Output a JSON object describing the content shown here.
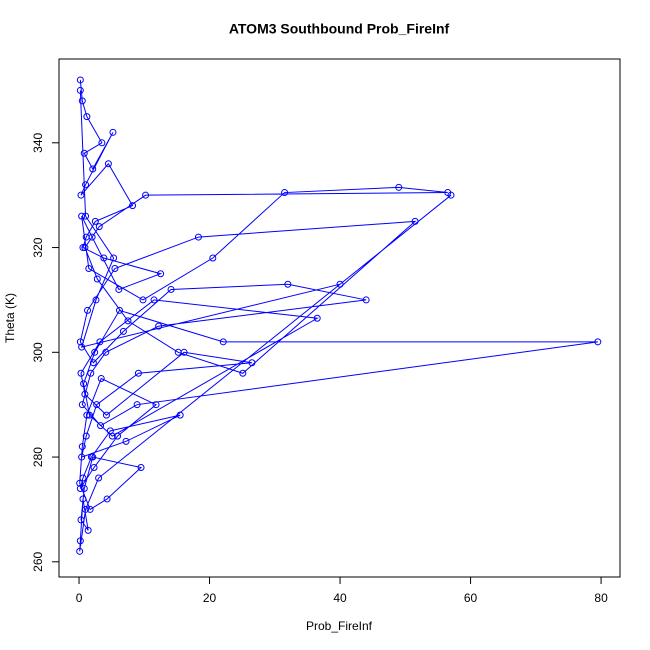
{
  "chart_data": {
    "type": "line",
    "title": "ATOM3 Southbound Prob_FireInf",
    "xlabel": "Prob_FireInf",
    "ylabel": "Theta (K)",
    "color": "#0000ff",
    "markers": true,
    "x": [
      0.2,
      0.5,
      1.2,
      3.5,
      0.8,
      2.1,
      5.2,
      1.0,
      0.3,
      4.5,
      8.2,
      2.5,
      1.1,
      0.6,
      3.8,
      12.5,
      6.1,
      2.0,
      0.4,
      1.5,
      9.8,
      20.5,
      31.5,
      49.0,
      56.5,
      10.2,
      3.1,
      0.9,
      2.8,
      7.5,
      15.2,
      25.1,
      51.5,
      18.3,
      5.5,
      1.3,
      0.2,
      2.2,
      6.8,
      14.1,
      32.0,
      44.0,
      12.2,
      4.1,
      1.8,
      0.5,
      3.3,
      8.9,
      79.5,
      22.1,
      6.2,
      2.4,
      0.7,
      1.6,
      5.1,
      36.5,
      11.5,
      3.2,
      0.3,
      0.9,
      4.2,
      16.1,
      26.5,
      9.1,
      2.7,
      1.1,
      0.4,
      7.2,
      15.5,
      4.8,
      1.9,
      0.6,
      0.2,
      2.3,
      5.9,
      11.8,
      3.4,
      1.2,
      0.5,
      0.1,
      1.7,
      4.3,
      9.5,
      2.1,
      0.8,
      0.3,
      1.4,
      0.6,
      0.2,
      0.1,
      1.0,
      3.0,
      57.0,
      40.0,
      0.4,
      2.6,
      5.3,
      1.0,
      0.2
    ],
    "values": [
      352,
      348,
      345,
      340,
      338,
      335,
      342,
      332,
      330,
      336,
      328,
      325,
      322,
      320,
      318,
      315,
      312,
      322,
      326,
      316,
      310,
      318,
      330.5,
      331.5,
      330.5,
      330,
      324,
      320,
      314,
      306,
      300,
      296,
      325,
      322,
      316,
      308,
      302,
      298,
      304,
      312,
      313,
      310,
      305,
      300,
      296,
      290,
      286,
      290,
      302,
      302,
      308,
      300,
      294,
      288,
      284,
      306.5,
      310,
      302,
      296,
      292,
      288,
      300,
      298,
      296,
      290,
      284,
      280,
      283,
      288,
      285,
      280,
      276,
      274,
      278,
      284,
      290,
      295,
      288,
      282,
      275,
      270,
      272,
      278,
      280,
      274,
      268,
      266,
      272,
      264,
      262,
      270,
      276,
      330,
      313,
      301,
      310,
      318,
      326,
      350
    ],
    "xlim": [
      -3.07,
      82.9
    ],
    "ylim": [
      257.1,
      356.0
    ],
    "xticks": [
      0,
      20,
      40,
      60,
      80
    ],
    "yticks": [
      260,
      280,
      300,
      320,
      340
    ],
    "grid": false
  }
}
